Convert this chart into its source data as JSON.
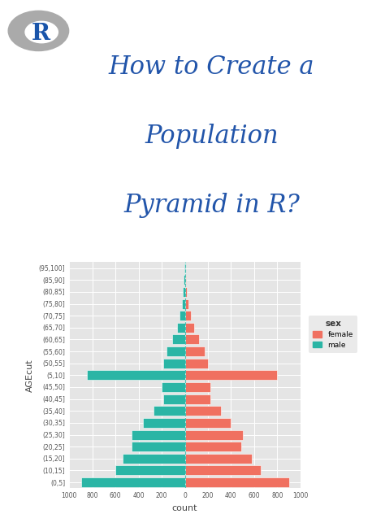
{
  "title_line1": "How to Create a",
  "title_line2": "Population",
  "title_line3": "Pyramid in R?",
  "title_color": "#2255aa",
  "title_fontsize": 22,
  "background_color": "#ffffff",
  "plot_bg_color": "#e5e5e5",
  "xlabel": "count",
  "ylabel": "AGEcut",
  "age_labels": [
    "(0,5]",
    "(10,15]",
    "(15,20]",
    "(20,25]",
    "(25,30]",
    "(30,35]",
    "(35,40]",
    "(40,45]",
    "(45,50]",
    "(5,10]",
    "(50,55]",
    "(55,60]",
    "(60,65]",
    "(65,70]",
    "(70,75]",
    "(75,80]",
    "(80,85]",
    "(85,90]",
    "(95,100]"
  ],
  "female_values": [
    900,
    660,
    580,
    490,
    500,
    400,
    310,
    220,
    220,
    800,
    200,
    170,
    120,
    80,
    50,
    30,
    20,
    10,
    5
  ],
  "male_values": [
    900,
    600,
    540,
    460,
    460,
    360,
    270,
    190,
    200,
    850,
    185,
    160,
    110,
    70,
    45,
    25,
    15,
    10,
    5
  ],
  "female_color": "#f07060",
  "male_color": "#2ab5a5",
  "xlim": 1000,
  "grid_color": "#ffffff",
  "legend_title": "sex",
  "r_logo_color_blue": "#1a55aa",
  "r_logo_color_gray": "#aaaaaa"
}
